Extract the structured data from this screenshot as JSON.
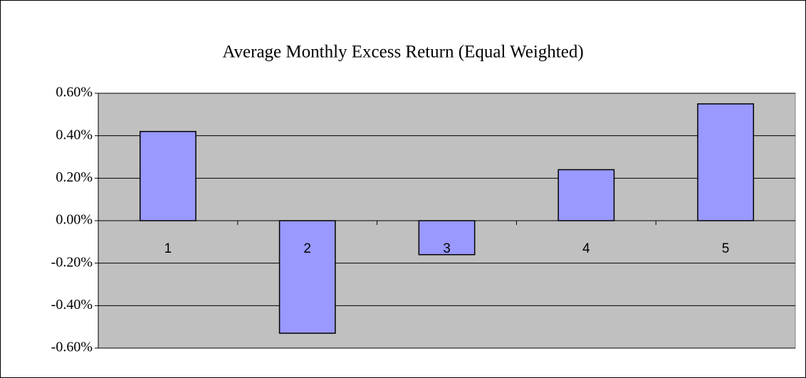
{
  "chart_data": {
    "type": "bar",
    "title": "Average Monthly Excess Return (Equal Weighted)",
    "categories": [
      "1",
      "2",
      "3",
      "4",
      "5"
    ],
    "values": [
      0.42,
      -0.53,
      -0.16,
      0.24,
      0.55
    ],
    "color": "#9999ff",
    "ylim": [
      -0.6,
      0.6
    ],
    "yticks": [
      {
        "value": -0.6,
        "label": "-0.60%"
      },
      {
        "value": -0.4,
        "label": "-0.40%"
      },
      {
        "value": -0.2,
        "label": "-0.20%"
      },
      {
        "value": 0,
        "label": "0.00%"
      },
      {
        "value": 0.2,
        "label": "0.20%"
      },
      {
        "value": 0.4,
        "label": "0.40%"
      },
      {
        "value": 0.6,
        "label": "0.60%"
      }
    ],
    "grid": true
  }
}
